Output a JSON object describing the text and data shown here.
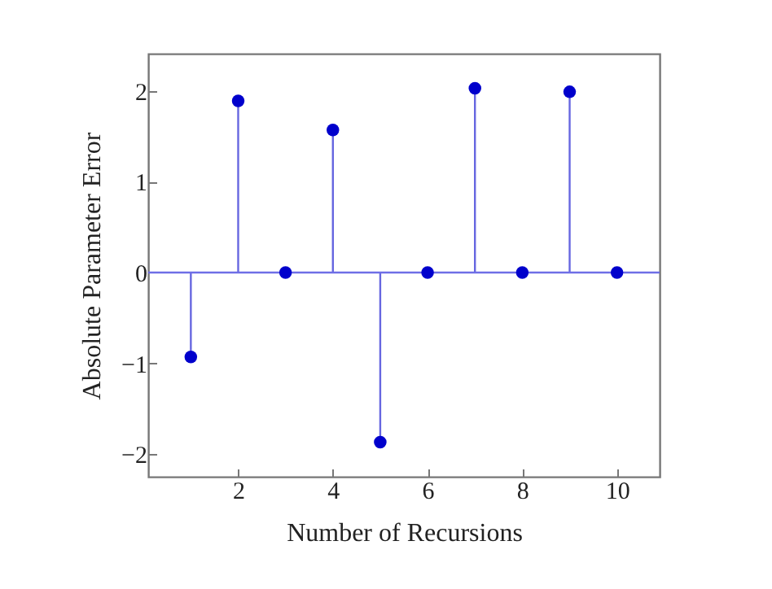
{
  "chart_data": {
    "type": "lollipop",
    "xlabel": "Number of Recursions",
    "ylabel": "Absolute Parameter Error",
    "x": [
      1,
      2,
      3,
      4,
      5,
      6,
      7,
      8,
      9,
      10
    ],
    "series": [
      {
        "color": "#0000cc",
        "values": [
          -0.93,
          1.89,
          0,
          1.57,
          -1.87,
          0,
          2.03,
          0,
          1.99,
          0
        ]
      }
    ],
    "xlim": [
      0.1,
      10.9
    ],
    "xticks": [
      2,
      4,
      6,
      8,
      10
    ],
    "ylim": [
      -2.25,
      2.41
    ],
    "yticks": [
      -2,
      -1,
      0,
      1,
      2
    ],
    "ref_lines": [
      {
        "axis": "y",
        "value": 0,
        "color": "#6f6fe6"
      }
    ],
    "marker": "circle",
    "grid": false
  }
}
